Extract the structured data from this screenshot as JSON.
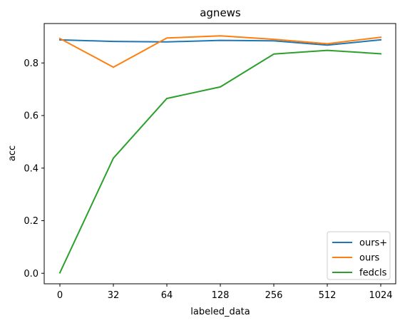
{
  "chart_data": {
    "type": "line",
    "title": "agnews",
    "xlabel": "labeled_data",
    "ylabel": "acc",
    "categories": [
      "0",
      "32",
      "64",
      "128",
      "256",
      "512",
      "1024"
    ],
    "yticks": [
      "0.0",
      "0.2",
      "0.4",
      "0.6",
      "0.8"
    ],
    "ylim": [
      -0.04,
      0.95
    ],
    "grid": false,
    "legend_position": "lower-right",
    "series": [
      {
        "name": "ours+",
        "color": "#1f77b4",
        "values": [
          0.888,
          0.882,
          0.88,
          0.886,
          0.884,
          0.868,
          0.888
        ]
      },
      {
        "name": "ours",
        "color": "#ff7f0e",
        "values": [
          0.893,
          0.784,
          0.895,
          0.903,
          0.89,
          0.873,
          0.898
        ]
      },
      {
        "name": "fedcls",
        "color": "#2ca02c",
        "values": [
          0.002,
          0.438,
          0.665,
          0.709,
          0.834,
          0.848,
          0.835
        ]
      }
    ]
  }
}
